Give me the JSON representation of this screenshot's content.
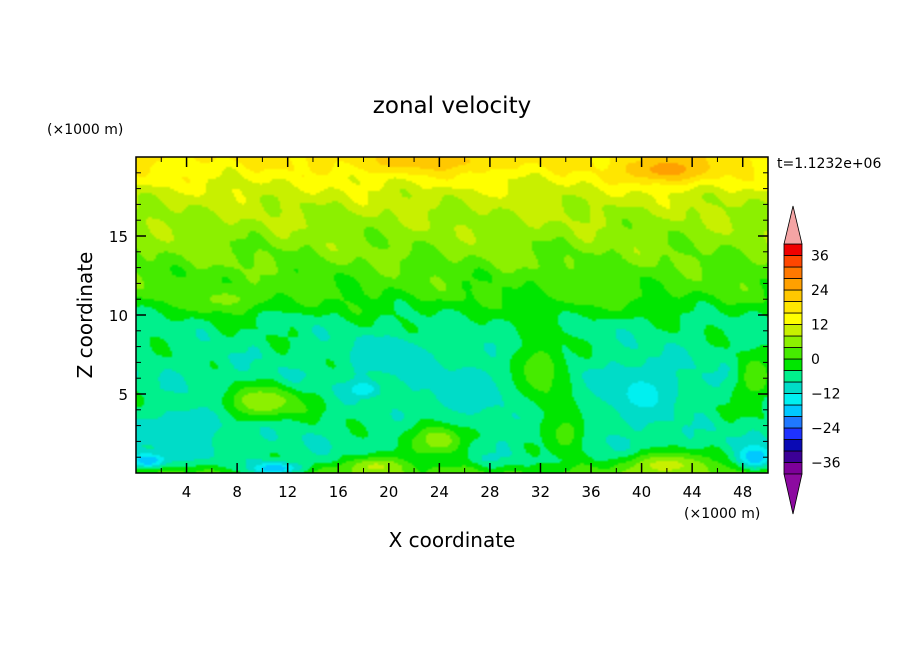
{
  "chart_data": {
    "type": "heatmap",
    "title": "zonal velocity",
    "xlabel": "X coordinate",
    "ylabel": "Z coordinate",
    "x_unit": "(×1000 m)",
    "y_unit": "(×1000 m)",
    "time_label": "t=1.1232e+06",
    "xlim": [
      0,
      50
    ],
    "ylim": [
      0,
      20
    ],
    "x_ticks": [
      4,
      8,
      12,
      16,
      20,
      24,
      28,
      32,
      36,
      40,
      44,
      48
    ],
    "y_ticks": [
      5,
      10,
      15
    ],
    "colorbar": {
      "levels": [
        -40,
        -36,
        -32,
        -28,
        -24,
        -20,
        -16,
        -12,
        -8,
        -4,
        0,
        4,
        8,
        12,
        16,
        20,
        24,
        28,
        32,
        36,
        40
      ],
      "labels": [
        36,
        24,
        12,
        0,
        -12,
        -24,
        -36
      ],
      "colors": [
        "#7d0099",
        "#3c0096",
        "#0a0ab4",
        "#1e32ff",
        "#1f78ff",
        "#00c8ff",
        "#00f0f0",
        "#00dcc8",
        "#00f08c",
        "#00e600",
        "#46eb00",
        "#8cf000",
        "#c8f000",
        "#ffff00",
        "#ffe600",
        "#ffc800",
        "#ffa000",
        "#ff7800",
        "#ff4600",
        "#f00000"
      ],
      "over_color": "#f4a4a4",
      "under_color": "#8c0aa0"
    },
    "field_features": [
      {
        "x": 23,
        "z": 19.7,
        "value": 22,
        "sx": 6,
        "sz": 0.7
      },
      {
        "x": 42,
        "z": 19.2,
        "value": 26,
        "sx": 3.5,
        "sz": 0.9
      },
      {
        "x": 10,
        "z": 4.5,
        "value": 8,
        "sx": 3,
        "sz": 1.0
      },
      {
        "x": 24,
        "z": 2.2,
        "value": 9,
        "sx": 2.2,
        "sz": 1.1
      },
      {
        "x": 19,
        "z": 0.4,
        "value": 9,
        "sx": 2.5,
        "sz": 0.7
      },
      {
        "x": 42,
        "z": 0.5,
        "value": 10,
        "sx": 3.5,
        "sz": 0.8
      },
      {
        "x": 1,
        "z": 0.8,
        "value": -20,
        "sx": 1.5,
        "sz": 0.5
      },
      {
        "x": 11,
        "z": 0.3,
        "value": -20,
        "sx": 2,
        "sz": 0.4
      },
      {
        "x": 49,
        "z": 1.0,
        "value": -20,
        "sx": 1.2,
        "sz": 0.7
      },
      {
        "x": 18,
        "z": 5.3,
        "value": -16,
        "sx": 1.2,
        "sz": 0.5
      },
      {
        "x": 20,
        "z": 7.5,
        "value": -12,
        "sx": 3,
        "sz": 1.2
      },
      {
        "x": 26,
        "z": 5,
        "value": -10,
        "sx": 4,
        "sz": 2
      },
      {
        "x": 40,
        "z": 5,
        "value": -13,
        "sx": 3,
        "sz": 2
      },
      {
        "x": 4,
        "z": 3,
        "value": -11,
        "sx": 3,
        "sz": 1.5
      },
      {
        "x": 32,
        "z": 6.5,
        "value": 3,
        "sx": 2,
        "sz": 2
      },
      {
        "x": 34,
        "z": 2.5,
        "value": 2,
        "sx": 1.5,
        "sz": 1.5
      },
      {
        "x": 36,
        "z": 11.5,
        "value": 2,
        "sx": 3,
        "sz": 1.2
      },
      {
        "x": 49,
        "z": 6,
        "value": 3,
        "sx": 1.5,
        "sz": 1.5
      },
      {
        "x": 7,
        "z": 11,
        "value": 5,
        "sx": 3,
        "sz": 0.8
      }
    ]
  }
}
